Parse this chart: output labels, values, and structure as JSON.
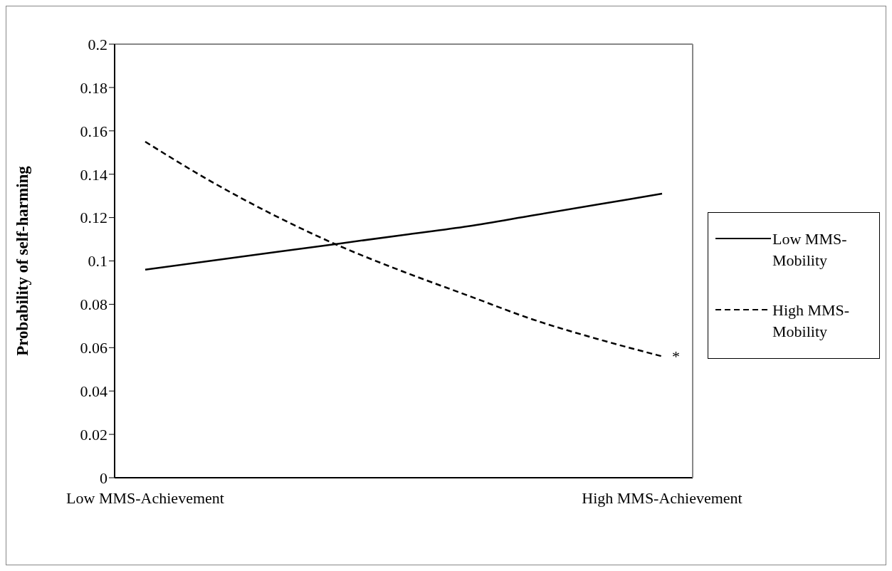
{
  "chart_data": {
    "type": "line",
    "ylabel": "Probability of self-harming",
    "categories": [
      "Low MMS-Achievement",
      null,
      null,
      null,
      null,
      null,
      null,
      null,
      "High MMS-Achievement"
    ],
    "series": [
      {
        "name": "Low MMS-Mobility",
        "color": "#000000",
        "line_style": "solid",
        "values": [
          0.096,
          0.1,
          0.104,
          0.108,
          0.112,
          0.116,
          0.121,
          0.126,
          0.131
        ]
      },
      {
        "name": "High MMS-Mobility",
        "color": "#000000",
        "line_style": "dashed",
        "values": [
          0.155,
          0.137,
          0.121,
          0.107,
          0.095,
          0.084,
          0.073,
          0.064,
          0.056
        ]
      }
    ],
    "ylim": [
      0,
      0.2
    ],
    "yticks": [
      0,
      0.02,
      0.04,
      0.06,
      0.08,
      0.1,
      0.12,
      0.14,
      0.16,
      0.18,
      0.2
    ],
    "grid": false,
    "legend": "right",
    "marker": "none",
    "annotations": [
      {
        "text": "*",
        "x": "High MMS-Achievement",
        "y": 0.056
      }
    ]
  }
}
